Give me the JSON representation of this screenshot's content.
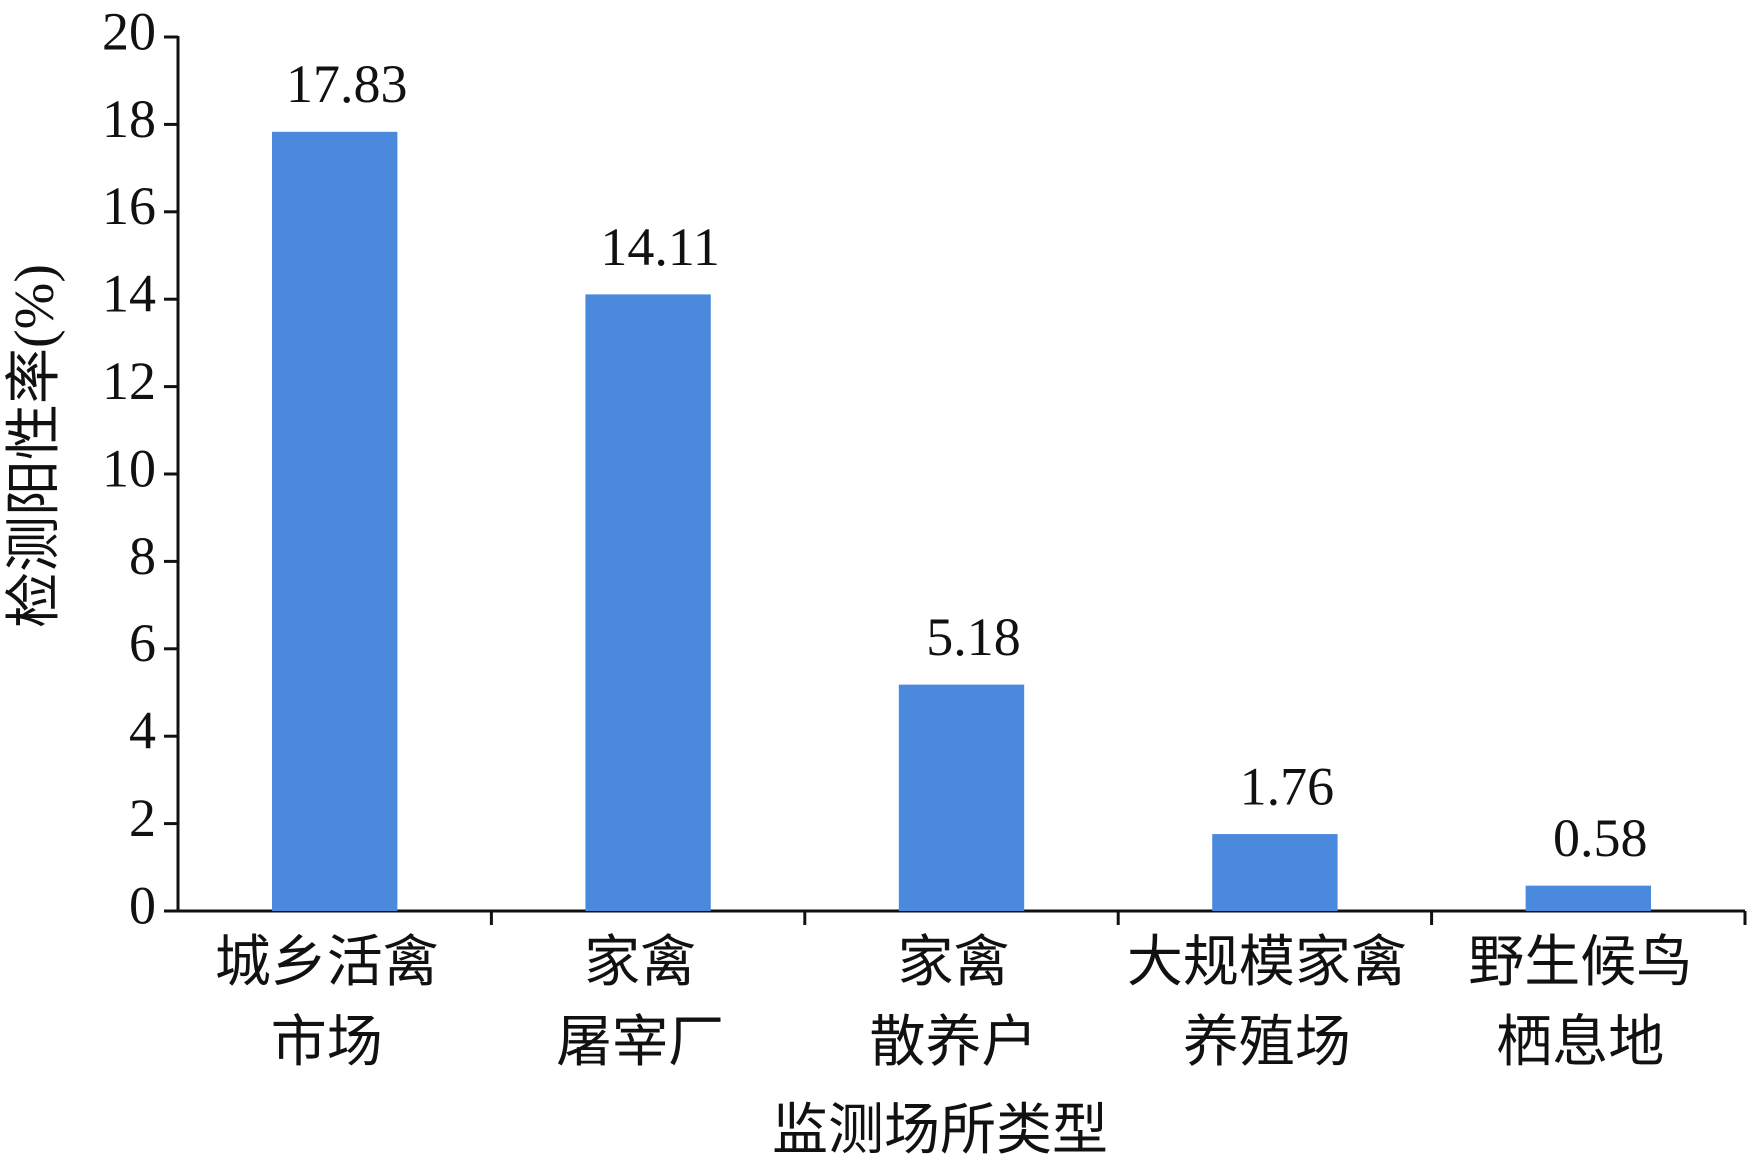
{
  "chart_data": {
    "type": "bar",
    "x_label": "监测场所类型",
    "y_label": "检测阳性率(%)",
    "categories": [
      [
        "城乡活禽",
        "市场"
      ],
      [
        "家禽",
        "屠宰厂"
      ],
      [
        "家禽",
        "散养户"
      ],
      [
        "大规模家禽",
        "养殖场"
      ],
      [
        "野生候鸟",
        "栖息地"
      ]
    ],
    "values": [
      17.83,
      14.11,
      5.18,
      1.76,
      0.58
    ],
    "color": "#4a89dc",
    "ylim": [
      0,
      20
    ],
    "yticks": [
      0,
      2,
      4,
      6,
      8,
      10,
      12,
      14,
      16,
      18,
      20
    ],
    "grid": false
  }
}
